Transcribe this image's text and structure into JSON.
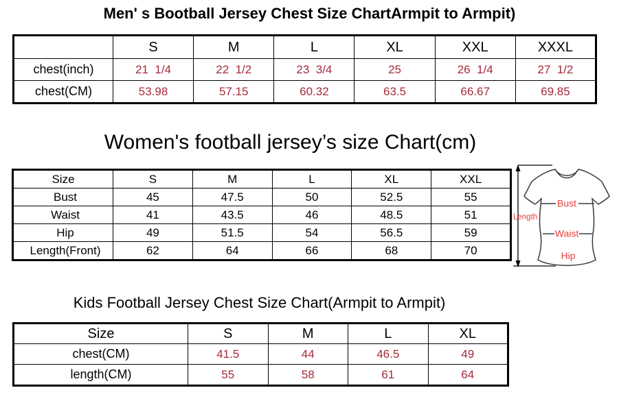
{
  "colors": {
    "table_value_red": "#a52a3a",
    "diagram_label_red": "#e8403a",
    "table_border": "#000000",
    "text": "#000000",
    "background": "#ffffff"
  },
  "men": {
    "title": "Men' s Bootball Jersey Chest Size ChartArmpit to Armpit)",
    "columns": [
      "",
      "S",
      "M",
      "L",
      "XL",
      "XXL",
      "XXXL"
    ],
    "rows": [
      {
        "label": "chest(inch)",
        "values": [
          "21  1/4",
          "22  1/2",
          "23  3/4",
          "25",
          "26  1/4",
          "27  1/2"
        ]
      },
      {
        "label": "chest(CM)",
        "values": [
          "53.98",
          "57.15",
          "60.32",
          "63.5",
          "66.67",
          "69.85"
        ]
      }
    ]
  },
  "women": {
    "title": "Women's football jersey’s size Chart(cm)",
    "columns": [
      "Size",
      "S",
      "M",
      "L",
      "XL",
      "XXL"
    ],
    "rows": [
      {
        "label": "Bust",
        "values": [
          "45",
          "47.5",
          "50",
          "52.5",
          "55"
        ]
      },
      {
        "label": "Waist",
        "values": [
          "41",
          "43.5",
          "46",
          "48.5",
          "51"
        ]
      },
      {
        "label": "Hip",
        "values": [
          "49",
          "51.5",
          "54",
          "56.5",
          "59"
        ]
      },
      {
        "label": "Length(Front)",
        "values": [
          "62",
          "64",
          "66",
          "68",
          "70"
        ]
      }
    ],
    "diagram": {
      "length_label": "Length",
      "bust_label": "Bust",
      "waist_label": "Waist",
      "hip_label": "Hip"
    }
  },
  "kids": {
    "title": "Kids Football Jersey Chest Size Chart(Armpit to Armpit)",
    "columns": [
      "Size",
      "S",
      "M",
      "L",
      "XL"
    ],
    "rows": [
      {
        "label": "chest(CM)",
        "values": [
          "41.5",
          "44",
          "46.5",
          "49"
        ]
      },
      {
        "label": "length(CM)",
        "values": [
          "55",
          "58",
          "61",
          "64"
        ]
      }
    ]
  }
}
